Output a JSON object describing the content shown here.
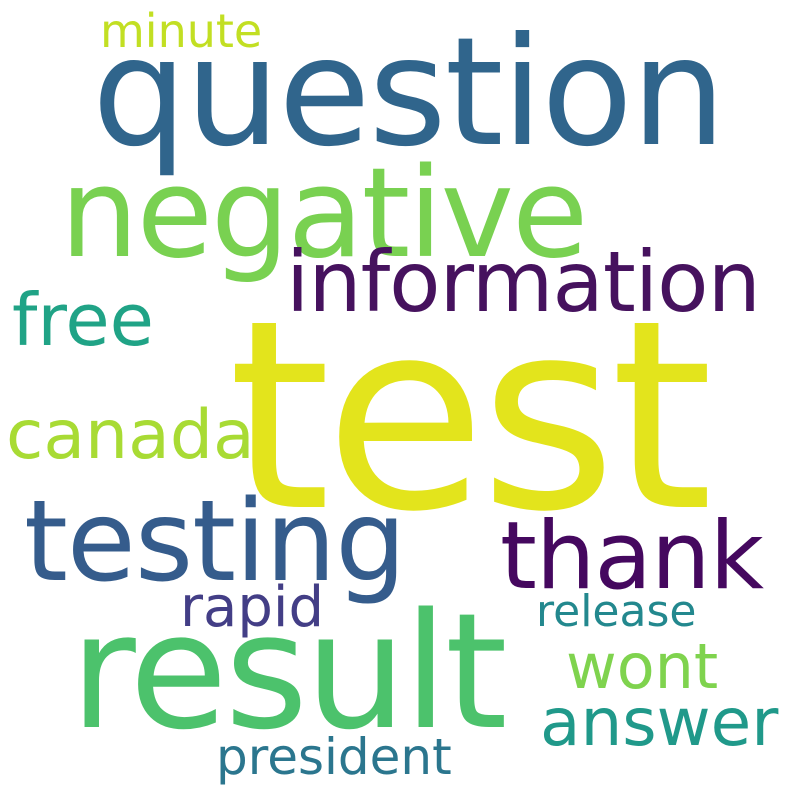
{
  "word_cloud": {
    "background_color": "#ffffff",
    "words": [
      {
        "key": "test",
        "text": "test",
        "color": "#e3e41c"
      },
      {
        "key": "question",
        "text": "question",
        "color": "#30658c"
      },
      {
        "key": "negative",
        "text": "negative",
        "color": "#79d151"
      },
      {
        "key": "result",
        "text": "result",
        "color": "#4cc26c"
      },
      {
        "key": "testing",
        "text": "testing",
        "color": "#355c8c"
      },
      {
        "key": "information",
        "text": "information",
        "color": "#46125e"
      },
      {
        "key": "thank",
        "text": "thank",
        "color": "#45085f"
      },
      {
        "key": "free",
        "text": "free",
        "color": "#20a386"
      },
      {
        "key": "canada",
        "text": "canada",
        "color": "#a8db34"
      },
      {
        "key": "rapid",
        "text": "rapid",
        "color": "#433e86"
      },
      {
        "key": "wont",
        "text": "wont",
        "color": "#7fd34e"
      },
      {
        "key": "release",
        "text": "release",
        "color": "#23888e"
      },
      {
        "key": "answer",
        "text": "answer",
        "color": "#20998a"
      },
      {
        "key": "president",
        "text": "president",
        "color": "#2b768e"
      },
      {
        "key": "minute",
        "text": "minute",
        "color": "#c2df23"
      }
    ]
  }
}
